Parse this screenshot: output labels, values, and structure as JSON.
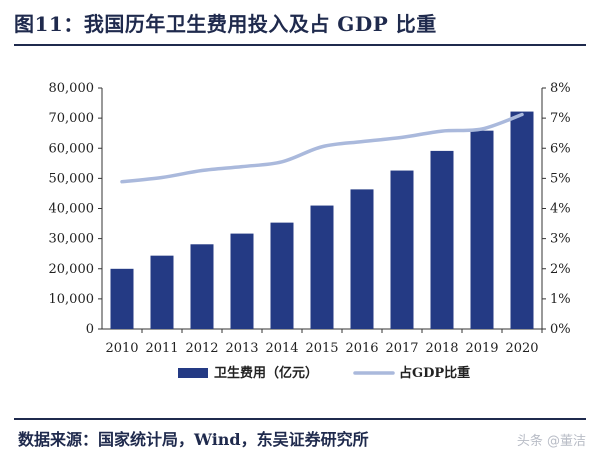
{
  "title": "图11：我国历年卫生费用投入及占 GDP 比重",
  "source": "数据来源：国家统计局，Wind，东吴证券研究所",
  "watermark": "头条 @董洁",
  "colors": {
    "bar": "#243a84",
    "line": "#aab9dc",
    "text": "#1f2a4d",
    "axis": "#333333"
  },
  "chart_data": {
    "type": "bar+line",
    "categories": [
      "2010",
      "2011",
      "2012",
      "2013",
      "2014",
      "2015",
      "2016",
      "2017",
      "2018",
      "2019",
      "2020"
    ],
    "series": [
      {
        "name": "卫生费用（亿元）",
        "type": "bar",
        "axis": "left",
        "values": [
          19980,
          24346,
          28119,
          31669,
          35312,
          40975,
          46345,
          52598,
          59122,
          65841,
          72175
        ]
      },
      {
        "name": "占GDP比重",
        "type": "line",
        "axis": "right",
        "values": [
          4.89,
          5.03,
          5.26,
          5.39,
          5.55,
          6.05,
          6.22,
          6.36,
          6.57,
          6.64,
          7.12
        ]
      }
    ],
    "left_axis": {
      "ylim": [
        0,
        80000
      ],
      "ticks": [
        "0",
        "10,000",
        "20,000",
        "30,000",
        "40,000",
        "50,000",
        "60,000",
        "70,000",
        "80,000"
      ]
    },
    "right_axis": {
      "ylim": [
        0,
        8
      ],
      "ticks": [
        "0%",
        "1%",
        "2%",
        "3%",
        "4%",
        "5%",
        "6%",
        "7%",
        "8%"
      ]
    },
    "legend_position": "bottom",
    "grid": false
  }
}
